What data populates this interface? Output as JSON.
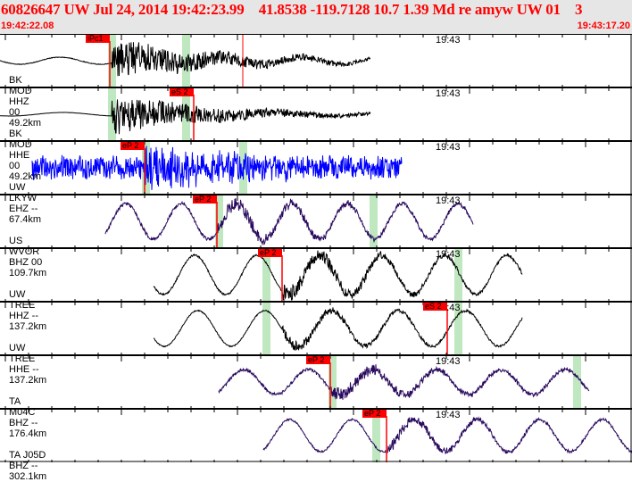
{
  "header": {
    "title": "60826647 UW Jul 24, 2014 19:42:23.99    41.8538 -119.7128 10.7 1.39 Md re amyw UW 01    3",
    "start_time": "19:42:22.08",
    "end_time": "19:43:17.20"
  },
  "minute_label": "19:43",
  "colors": {
    "pick": "#ff0000",
    "window": "#c0e8c0",
    "trace_black": "#000000",
    "trace_blue": "#0000ff",
    "trace_purple": "#2a0a5e"
  },
  "channels": [
    {
      "label": "BK MOD HHZ 00 49.2km",
      "pick": "iPc1",
      "color": "#000000"
    },
    {
      "label": "BK MOD HHE 00 49.2km",
      "pick": "eS 2",
      "color": "#000000"
    },
    {
      "label": "UW LKYW EHZ -- 67.4km",
      "pick": "eP 2",
      "color": "#0000ff"
    },
    {
      "label": "US WVOR BHZ 00 109.7km",
      "pick": "eP 2",
      "color": "#2a0a5e"
    },
    {
      "label": "UW TREE HHZ -- 137.2km",
      "pick": "eP 2",
      "color": "#000000"
    },
    {
      "label": "UW TREE HHE -- 137.2km",
      "pick": "eS 2",
      "color": "#000000"
    },
    {
      "label": "TA M04C BHZ -- 176.4km",
      "pick": "eP 2",
      "color": "#2a0a5e"
    },
    {
      "label": "TA J05D BHZ -- 302.1km",
      "pick": "eP 2",
      "color": "#2a0a5e"
    }
  ]
}
